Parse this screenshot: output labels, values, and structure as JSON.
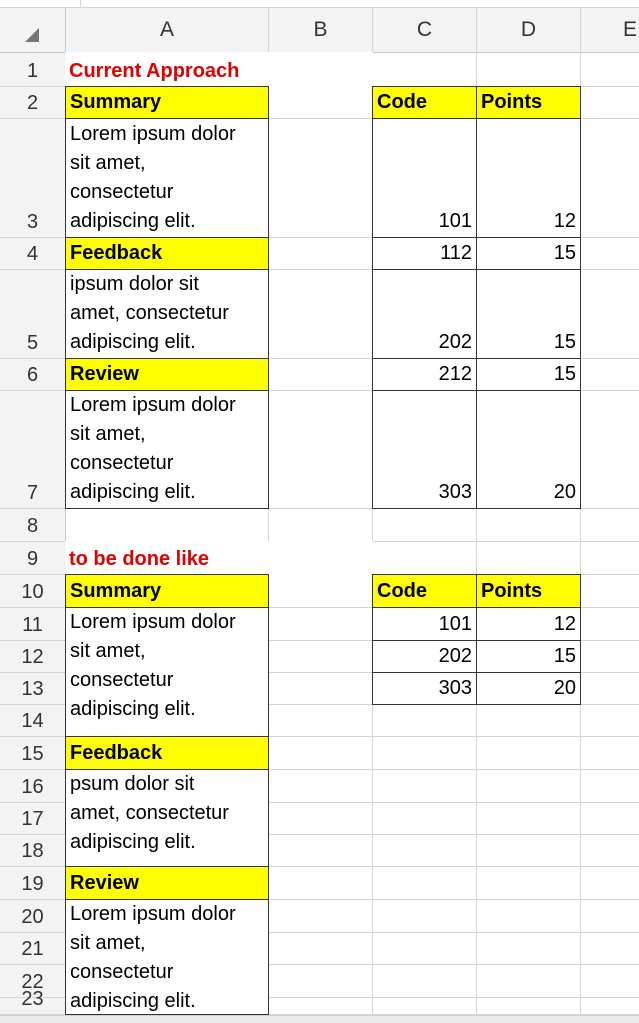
{
  "columns": [
    "A",
    "B",
    "C",
    "D",
    "E"
  ],
  "rows": [
    "1",
    "2",
    "3",
    "4",
    "5",
    "6",
    "7",
    "8",
    "9",
    "10",
    "11",
    "12",
    "13",
    "14",
    "15",
    "16",
    "17",
    "18",
    "19",
    "20",
    "21",
    "22",
    "23"
  ],
  "colors": {
    "header_fill": "#ffff00",
    "title_text": "#e00000",
    "border": "#333333",
    "gridline": "#d4d4d4"
  },
  "current": {
    "title": "Current Approach",
    "sections": [
      {
        "label": "Summary",
        "text": "Lorem ipsum dolor\nsit amet,\nconsectetur\nadipiscing elit."
      },
      {
        "label": "Feedback",
        "text": "ipsum dolor sit\namet, consectetur\nadipiscing elit."
      },
      {
        "label": "Review",
        "text": "Lorem ipsum dolor\nsit amet,\nconsectetur\nadipiscing elit."
      }
    ],
    "table": {
      "headers": [
        "Code",
        "Points"
      ],
      "rows": [
        [
          "101",
          "12"
        ],
        [
          "112",
          "15"
        ],
        [
          "202",
          "15"
        ],
        [
          "212",
          "15"
        ],
        [
          "303",
          "20"
        ]
      ]
    }
  },
  "proposed": {
    "title": "to be done like",
    "sections": [
      {
        "label": "Summary",
        "text": "Lorem ipsum dolor\nsit amet,\nconsectetur\nadipiscing elit."
      },
      {
        "label": "Feedback",
        "text": "psum dolor sit\namet, consectetur\nadipiscing elit."
      },
      {
        "label": "Review",
        "text": "Lorem ipsum dolor\nsit amet,\nconsectetur\nadipiscing elit."
      }
    ],
    "table": {
      "headers": [
        "Code",
        "Points"
      ],
      "rows": [
        [
          "101",
          "12"
        ],
        [
          "202",
          "15"
        ],
        [
          "303",
          "20"
        ]
      ]
    }
  }
}
